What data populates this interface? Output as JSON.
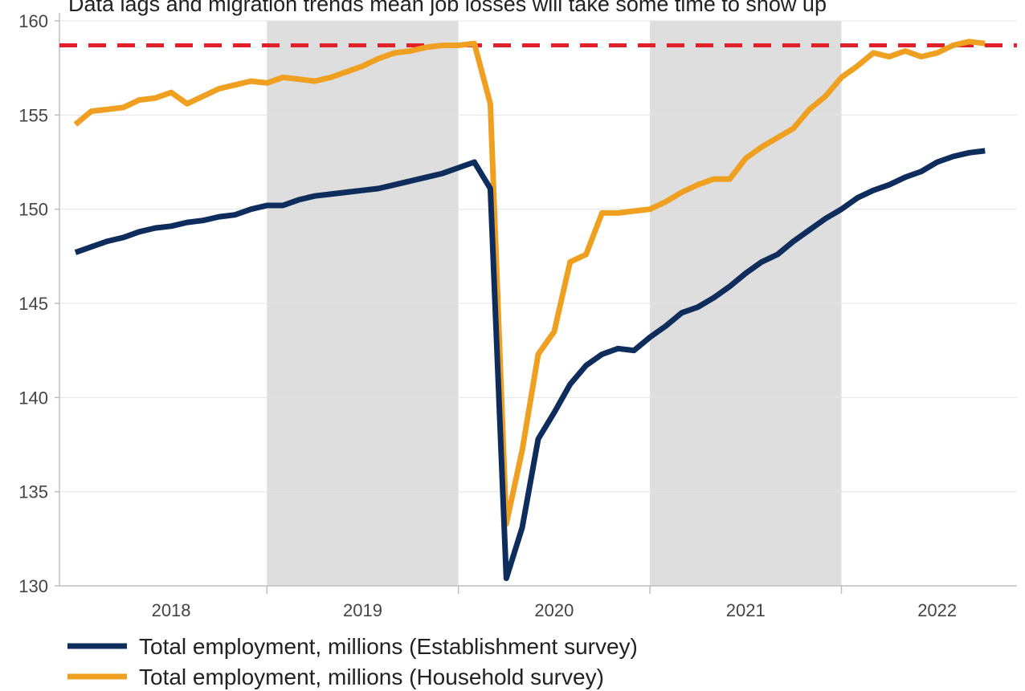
{
  "chart_data": {
    "type": "line",
    "title": "Data lags and migration trends mean job losses will take some time to show up",
    "xlabel": "",
    "ylabel": "",
    "ylim": [
      130,
      160
    ],
    "yticks": [
      130,
      135,
      140,
      145,
      150,
      155,
      160
    ],
    "xlim": [
      "2017-12",
      "2022-12"
    ],
    "year_labels": [
      "2018",
      "2019",
      "2020",
      "2021",
      "2022"
    ],
    "shaded_years": [
      "2019",
      "2021"
    ],
    "grid": "horizontal",
    "legend_position": "bottom-left",
    "reference_line": {
      "value": 158.7,
      "color": "#e0202a",
      "style": "dashed"
    },
    "series": [
      {
        "name": "Total employment, millions (Establishment survey)",
        "color": "#0e2d5c",
        "x": [
          "2018-01",
          "2018-02",
          "2018-03",
          "2018-04",
          "2018-05",
          "2018-06",
          "2018-07",
          "2018-08",
          "2018-09",
          "2018-10",
          "2018-11",
          "2018-12",
          "2019-01",
          "2019-02",
          "2019-03",
          "2019-04",
          "2019-05",
          "2019-06",
          "2019-07",
          "2019-08",
          "2019-09",
          "2019-10",
          "2019-11",
          "2019-12",
          "2020-01",
          "2020-02",
          "2020-03",
          "2020-04",
          "2020-05",
          "2020-06",
          "2020-07",
          "2020-08",
          "2020-09",
          "2020-10",
          "2020-11",
          "2020-12",
          "2021-01",
          "2021-02",
          "2021-03",
          "2021-04",
          "2021-05",
          "2021-06",
          "2021-07",
          "2021-08",
          "2021-09",
          "2021-10",
          "2021-11",
          "2021-12",
          "2022-01",
          "2022-02",
          "2022-03",
          "2022-04",
          "2022-05",
          "2022-06",
          "2022-07",
          "2022-08",
          "2022-09",
          "2022-10"
        ],
        "values": [
          147.7,
          148.0,
          148.3,
          148.5,
          148.8,
          149.0,
          149.1,
          149.3,
          149.4,
          149.6,
          149.7,
          150.0,
          150.2,
          150.2,
          150.5,
          150.7,
          150.8,
          150.9,
          151.0,
          151.1,
          151.3,
          151.5,
          151.7,
          151.9,
          152.2,
          152.5,
          151.1,
          130.4,
          133.1,
          137.8,
          139.2,
          140.7,
          141.7,
          142.3,
          142.6,
          142.5,
          143.2,
          143.8,
          144.5,
          144.8,
          145.3,
          145.9,
          146.6,
          147.2,
          147.6,
          148.3,
          148.9,
          149.5,
          150.0,
          150.6,
          151.0,
          151.3,
          151.7,
          152.0,
          152.5,
          152.8,
          153.0,
          153.1
        ]
      },
      {
        "name": "Total employment, millions (Household survey)",
        "color": "#f0a020",
        "x": [
          "2018-01",
          "2018-02",
          "2018-03",
          "2018-04",
          "2018-05",
          "2018-06",
          "2018-07",
          "2018-08",
          "2018-09",
          "2018-10",
          "2018-11",
          "2018-12",
          "2019-01",
          "2019-02",
          "2019-03",
          "2019-04",
          "2019-05",
          "2019-06",
          "2019-07",
          "2019-08",
          "2019-09",
          "2019-10",
          "2019-11",
          "2019-12",
          "2020-01",
          "2020-02",
          "2020-03",
          "2020-04",
          "2020-05",
          "2020-06",
          "2020-07",
          "2020-08",
          "2020-09",
          "2020-10",
          "2020-11",
          "2020-12",
          "2021-01",
          "2021-02",
          "2021-03",
          "2021-04",
          "2021-05",
          "2021-06",
          "2021-07",
          "2021-08",
          "2021-09",
          "2021-10",
          "2021-11",
          "2021-12",
          "2022-01",
          "2022-02",
          "2022-03",
          "2022-04",
          "2022-05",
          "2022-06",
          "2022-07",
          "2022-08",
          "2022-09",
          "2022-10"
        ],
        "values": [
          154.5,
          155.2,
          155.3,
          155.4,
          155.8,
          155.9,
          156.2,
          155.6,
          156.0,
          156.4,
          156.6,
          156.8,
          156.7,
          157.0,
          156.9,
          156.8,
          157.0,
          157.3,
          157.6,
          158.0,
          158.3,
          158.4,
          158.6,
          158.7,
          158.7,
          158.8,
          155.6,
          133.3,
          137.2,
          142.3,
          143.5,
          147.2,
          147.6,
          149.8,
          149.8,
          149.9,
          150.0,
          150.4,
          150.9,
          151.3,
          151.6,
          151.6,
          152.7,
          153.3,
          153.8,
          154.3,
          155.3,
          156.0,
          157.0,
          157.6,
          158.3,
          158.1,
          158.4,
          158.1,
          158.3,
          158.7,
          158.9,
          158.8
        ]
      }
    ]
  }
}
